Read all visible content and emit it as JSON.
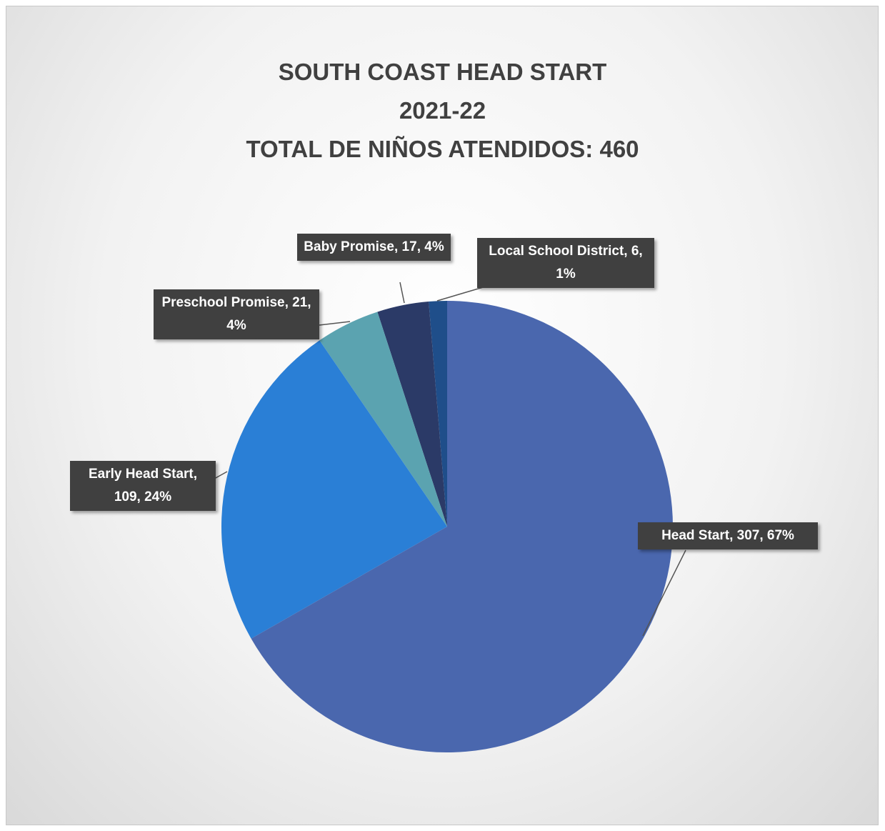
{
  "chart_data": {
    "type": "pie",
    "title": [
      "SOUTH COAST HEAD START",
      "2021-22",
      "TOTAL DE NIÑOS ATENDIDOS: 460"
    ],
    "categories": [
      "Head Start",
      "Early Head Start",
      "Preschool Promise",
      "Baby Promise",
      "Local School District"
    ],
    "values": [
      307,
      109,
      21,
      17,
      6
    ],
    "value_labels": [
      "Head Start, 307, 67%",
      "Early Head Start, 109, 24%",
      "Preschool Promise, 21, 4%",
      "Baby Promise, 17, 4%",
      "Local School District, 6, 1%"
    ],
    "colors": [
      "#4a67ae",
      "#2a7fd6",
      "#5ba3b0",
      "#2b3a67",
      "#1f4e8a"
    ]
  }
}
